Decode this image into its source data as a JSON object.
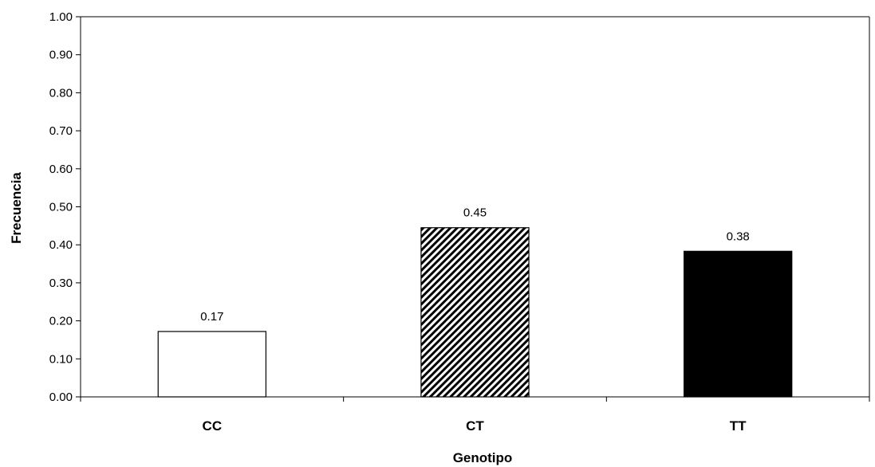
{
  "chart_data": {
    "type": "bar",
    "categories": [
      "CC",
      "CT",
      "TT"
    ],
    "values": [
      0.172,
      0.445,
      0.383
    ],
    "data_labels": [
      "0.17",
      "0.45",
      "0.38"
    ],
    "bar_fills": [
      "white",
      "diagonal-hatch",
      "black"
    ],
    "title": "",
    "xlabel": "Genotipo",
    "ylabel": "Frecuencia",
    "ylim": [
      0,
      1
    ],
    "yticks": [
      0,
      0.1,
      0.2,
      0.3,
      0.4,
      0.5,
      0.6,
      0.7,
      0.8,
      0.9,
      1.0
    ],
    "ytick_labels": [
      "0.00",
      "0.10",
      "0.20",
      "0.30",
      "0.40",
      "0.50",
      "0.60",
      "0.70",
      "0.80",
      "0.90",
      "1.00"
    ],
    "grid": false,
    "legend": "none",
    "colors": {
      "axis": "#000000",
      "bar_edge": "#000000",
      "bar_white": "#ffffff",
      "bar_black": "#000000"
    }
  }
}
